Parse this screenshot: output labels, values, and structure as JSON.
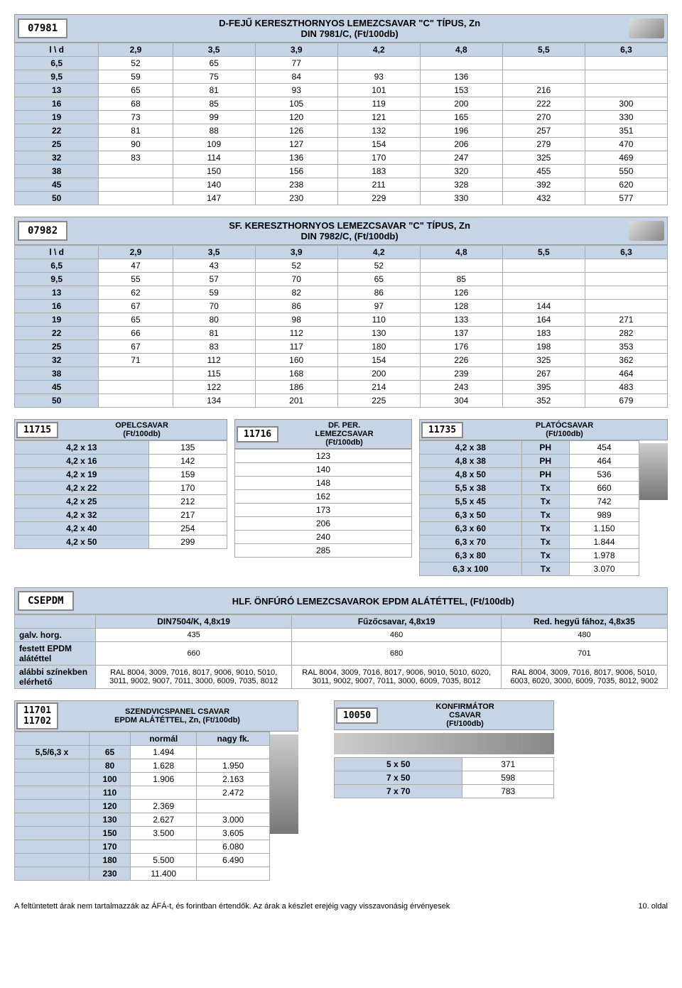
{
  "t1": {
    "code": "07981",
    "title1": "D-FEJŰ KERESZTHORNYOS LEMEZCSAVAR \"C\" TÍPUS, Zn",
    "title2": "DIN 7981/C, (Ft/100db)",
    "cols": [
      "l \\ d",
      "2,9",
      "3,5",
      "3,9",
      "4,2",
      "4,8",
      "5,5",
      "6,3"
    ],
    "rows": [
      [
        "6,5",
        "52",
        "65",
        "77",
        "",
        "",
        "",
        ""
      ],
      [
        "9,5",
        "59",
        "75",
        "84",
        "93",
        "136",
        "",
        ""
      ],
      [
        "13",
        "65",
        "81",
        "93",
        "101",
        "153",
        "216",
        ""
      ],
      [
        "16",
        "68",
        "85",
        "105",
        "119",
        "200",
        "222",
        "300"
      ],
      [
        "19",
        "73",
        "99",
        "120",
        "121",
        "165",
        "270",
        "330"
      ],
      [
        "22",
        "81",
        "88",
        "126",
        "132",
        "196",
        "257",
        "351"
      ],
      [
        "25",
        "90",
        "109",
        "127",
        "154",
        "206",
        "279",
        "470"
      ],
      [
        "32",
        "83",
        "114",
        "136",
        "170",
        "247",
        "325",
        "469"
      ],
      [
        "38",
        "",
        "150",
        "156",
        "183",
        "320",
        "455",
        "550"
      ],
      [
        "45",
        "",
        "140",
        "238",
        "211",
        "328",
        "392",
        "620"
      ],
      [
        "50",
        "",
        "147",
        "230",
        "229",
        "330",
        "432",
        "577"
      ]
    ]
  },
  "t2": {
    "code": "07982",
    "title1": "SF. KERESZTHORNYOS LEMEZCSAVAR \"C\" TÍPUS, Zn",
    "title2": "DIN 7982/C, (Ft/100db)",
    "cols": [
      "l \\ d",
      "2,9",
      "3,5",
      "3,9",
      "4,2",
      "4,8",
      "5,5",
      "6,3"
    ],
    "rows": [
      [
        "6,5",
        "47",
        "43",
        "52",
        "52",
        "",
        "",
        ""
      ],
      [
        "9,5",
        "55",
        "57",
        "70",
        "65",
        "85",
        "",
        ""
      ],
      [
        "13",
        "62",
        "59",
        "82",
        "86",
        "126",
        "",
        ""
      ],
      [
        "16",
        "67",
        "70",
        "86",
        "97",
        "128",
        "144",
        ""
      ],
      [
        "19",
        "65",
        "80",
        "98",
        "110",
        "133",
        "164",
        "271"
      ],
      [
        "22",
        "66",
        "81",
        "112",
        "130",
        "137",
        "183",
        "282"
      ],
      [
        "25",
        "67",
        "83",
        "117",
        "180",
        "176",
        "198",
        "353"
      ],
      [
        "32",
        "71",
        "112",
        "160",
        "154",
        "226",
        "325",
        "362"
      ],
      [
        "38",
        "",
        "115",
        "168",
        "200",
        "239",
        "267",
        "464"
      ],
      [
        "45",
        "",
        "122",
        "186",
        "214",
        "243",
        "395",
        "483"
      ],
      [
        "50",
        "",
        "134",
        "201",
        "225",
        "304",
        "352",
        "679"
      ]
    ]
  },
  "t3a": {
    "code": "11715",
    "title": "OPELCSAVAR\n(Ft/100db)",
    "rows": [
      [
        "4,2 x 13",
        "135"
      ],
      [
        "4,2 x 16",
        "142"
      ],
      [
        "4,2 x 19",
        "159"
      ],
      [
        "4,2 x 22",
        "170"
      ],
      [
        "4,2 x 25",
        "212"
      ],
      [
        "4,2 x 32",
        "217"
      ],
      [
        "4,2 x 40",
        "254"
      ],
      [
        "4,2 x 50",
        "299"
      ]
    ]
  },
  "t3b": {
    "code": "11716",
    "title": "DF. PER. LEMEZCSAVAR (Ft/100db)",
    "rows": [
      [
        "123"
      ],
      [
        "140"
      ],
      [
        "148"
      ],
      [
        "162"
      ],
      [
        "173"
      ],
      [
        "206"
      ],
      [
        "240"
      ],
      [
        "285"
      ]
    ]
  },
  "t3c": {
    "code": "11735",
    "title": "PLATÓCSAVAR (Ft/100db)",
    "rows": [
      [
        "4,2 x 38",
        "PH",
        "454"
      ],
      [
        "4,8 x 38",
        "PH",
        "464"
      ],
      [
        "4,8 x 50",
        "PH",
        "536"
      ],
      [
        "5,5 x 38",
        "Tx",
        "660"
      ],
      [
        "5,5 x 45",
        "Tx",
        "742"
      ],
      [
        "6,3 x 50",
        "Tx",
        "989"
      ],
      [
        "6,3 x 60",
        "Tx",
        "1.150"
      ],
      [
        "6,3 x 70",
        "Tx",
        "1.844"
      ],
      [
        "6,3 x 80",
        "Tx",
        "1.978"
      ],
      [
        "6,3 x 100",
        "Tx",
        "3.070"
      ]
    ]
  },
  "t4": {
    "code": "CSEPDM",
    "title": "HLF. ÖNFÚRÓ LEMEZCSAVAROK EPDM ALÁTÉTTEL, (Ft/100db)",
    "cols": [
      "",
      "DIN7504/K, 4,8x19",
      "Fűzőcsavar, 4,8x19",
      "Red. hegyű fához, 4,8x35"
    ],
    "rows": [
      [
        "galv. horg.",
        "435",
        "460",
        "480"
      ],
      [
        "festett EPDM alátéttel",
        "660",
        "680",
        "701"
      ],
      [
        "alábbi színekben elérhető",
        "RAL 8004, 3009, 7016, 8017, 9006, 9010, 5010, 3011, 9002, 9007, 7011, 3000, 6009, 7035, 8012",
        "RAL 8004, 3009, 7016, 8017, 9006, 9010, 5010, 6020, 3011, 9002, 9007, 7011, 3000, 6009, 7035, 8012",
        "RAL 8004, 3009, 7016, 8017, 9006, 5010, 6003, 6020, 3000, 6009, 7035, 8012, 9002"
      ]
    ]
  },
  "t5": {
    "code": "11701\n11702",
    "title": "SZENDVICSPANEL CSAVAR EPDM ALÁTÉTTEL, Zn, (Ft/100db)",
    "cols": [
      "",
      "",
      "normál",
      "nagy fk."
    ],
    "rows": [
      [
        "5,5/6,3 x",
        "65",
        "1.494",
        ""
      ],
      [
        "",
        "80",
        "1.628",
        "1.950"
      ],
      [
        "",
        "100",
        "1.906",
        "2.163"
      ],
      [
        "",
        "110",
        "",
        "2.472"
      ],
      [
        "",
        "120",
        "2.369",
        ""
      ],
      [
        "",
        "130",
        "2.627",
        "3.000"
      ],
      [
        "",
        "150",
        "3.500",
        "3.605"
      ],
      [
        "",
        "170",
        "",
        "6.080"
      ],
      [
        "",
        "180",
        "5.500",
        "6.490"
      ],
      [
        "",
        "230",
        "11.400",
        ""
      ]
    ]
  },
  "t6": {
    "code": "10050",
    "title": "KONFIRMÁTOR CSAVAR (Ft/100db)",
    "rows": [
      [
        "5 x 50",
        "371"
      ],
      [
        "7 x 50",
        "598"
      ],
      [
        "7 x 70",
        "783"
      ]
    ]
  },
  "footer": {
    "left": "A feltüntetett árak nem tartalmazzák az ÁFÁ-t, és forintban értendők. Az árak a készlet erejéig vagy visszavonásig érvényesek",
    "right": "10. oldal"
  }
}
